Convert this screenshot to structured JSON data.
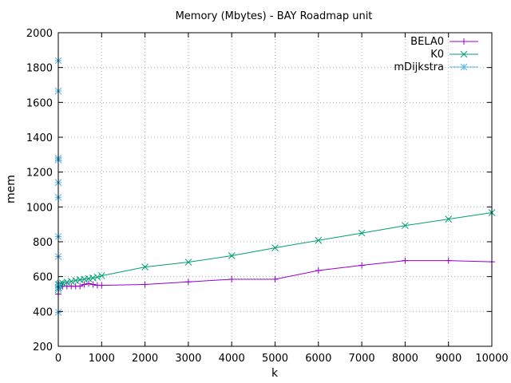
{
  "chart_data": {
    "type": "line",
    "title": "Memory (Mbytes) - BAY Roadmap unit",
    "xlabel": "k",
    "ylabel": "mem",
    "xlim": [
      0,
      10000
    ],
    "ylim": [
      200,
      2000
    ],
    "xticks": [
      0,
      1000,
      2000,
      3000,
      4000,
      5000,
      6000,
      7000,
      8000,
      9000,
      10000
    ],
    "yticks": [
      200,
      400,
      600,
      800,
      1000,
      1200,
      1400,
      1600,
      1800,
      2000
    ],
    "grid": true,
    "legend_position": "top-right",
    "series": [
      {
        "name": "BELA0",
        "color": "#9400d3",
        "marker": "plus",
        "x": [
          1,
          10,
          20,
          50,
          100,
          200,
          300,
          400,
          500,
          600,
          700,
          800,
          900,
          1000,
          2000,
          3000,
          4000,
          5000,
          6000,
          7000,
          8000,
          9000,
          10000
        ],
        "y": [
          500,
          540,
          545,
          545,
          545,
          545,
          545,
          545,
          545,
          555,
          560,
          555,
          550,
          550,
          555,
          570,
          585,
          585,
          635,
          665,
          692,
          692,
          685
        ]
      },
      {
        "name": "K0",
        "color": "#009e73",
        "marker": "x",
        "x": [
          1,
          10,
          20,
          50,
          100,
          200,
          300,
          400,
          500,
          600,
          700,
          800,
          900,
          1000,
          2000,
          3000,
          4000,
          5000,
          6000,
          7000,
          8000,
          9000,
          10000
        ],
        "y": [
          535,
          550,
          555,
          560,
          563,
          568,
          573,
          578,
          582,
          585,
          588,
          592,
          597,
          605,
          655,
          683,
          720,
          765,
          808,
          850,
          893,
          930,
          967
        ]
      },
      {
        "name": "mDijkstra",
        "color": "#56b4e9",
        "marker": "star",
        "x": [
          1,
          1,
          1,
          1,
          1,
          1,
          1,
          1,
          1,
          1,
          1
        ],
        "y": [
          395,
          525,
          555,
          715,
          830,
          1055,
          1140,
          1270,
          1280,
          1665,
          1840
        ]
      }
    ]
  }
}
